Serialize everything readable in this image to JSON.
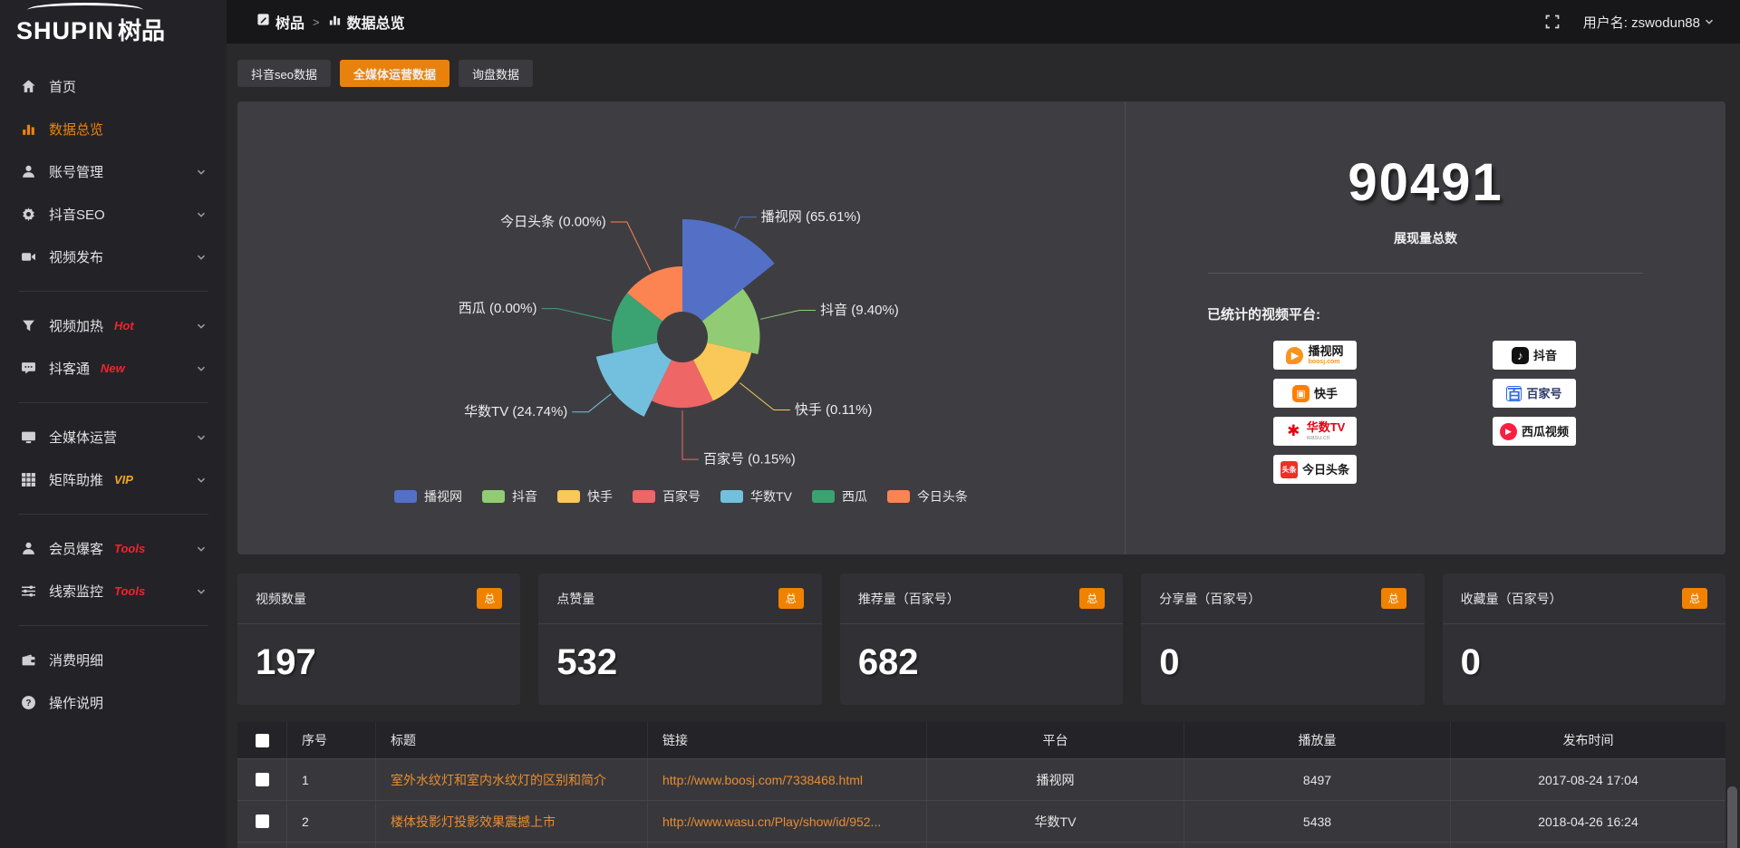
{
  "topbar": {
    "logo_en": "SHUPIN",
    "logo_cn": "树品",
    "breadcrumb": {
      "root": "树品",
      "separator": ">",
      "current": "数据总览"
    },
    "username": "用户名: zswodun88"
  },
  "tabs": [
    {
      "label": "抖音seo数据",
      "active": false
    },
    {
      "label": "全媒体运营数据",
      "active": true
    },
    {
      "label": "询盘数据",
      "active": false
    }
  ],
  "sidebar": {
    "items": [
      {
        "icon": "home-icon",
        "label": "首页"
      },
      {
        "icon": "bar-chart-icon",
        "label": "数据总览",
        "active": true
      },
      {
        "icon": "user-icon",
        "label": "账号管理",
        "chevron": true
      },
      {
        "icon": "gear-icon",
        "label": "抖音SEO",
        "chevron": true
      },
      {
        "icon": "video-icon",
        "label": "视频发布",
        "chevron": true
      },
      {
        "divider": true
      },
      {
        "icon": "funnel-icon",
        "label": "视频加热",
        "badge": "Hot",
        "badge_color": "#f5222d",
        "chevron": true
      },
      {
        "icon": "chat-icon",
        "label": "抖客通",
        "badge": "New",
        "badge_color": "#f5222d",
        "chevron": true
      },
      {
        "divider": true
      },
      {
        "icon": "monitor-icon",
        "label": "全媒体运营",
        "chevron": true
      },
      {
        "icon": "grid-icon",
        "label": "矩阵助推",
        "badge": "VIP",
        "badge_color": "#f0a818",
        "chevron": true
      },
      {
        "divider": true
      },
      {
        "icon": "member-icon",
        "label": "会员爆客",
        "badge": "Tools",
        "badge_color": "#f5222d",
        "chevron": true
      },
      {
        "icon": "sliders-icon",
        "label": "线索监控",
        "badge": "Tools",
        "badge_color": "#f5222d",
        "chevron": true
      },
      {
        "divider": true
      },
      {
        "icon": "wallet-icon",
        "label": "消费明细"
      },
      {
        "icon": "question-icon",
        "label": "操作说明"
      }
    ]
  },
  "chart_data": {
    "type": "pie",
    "subtype": "nightingale-rose",
    "title": "",
    "legend_position": "bottom",
    "label_format": "{name} ({pct}%)",
    "series": [
      {
        "name": "播视网",
        "pct": "65.61",
        "color": "#5470c6"
      },
      {
        "name": "抖音",
        "pct": "9.40",
        "color": "#91cc75"
      },
      {
        "name": "快手",
        "pct": "0.11",
        "color": "#fac858"
      },
      {
        "name": "百家号",
        "pct": "0.15",
        "color": "#ee6666"
      },
      {
        "name": "华数TV",
        "pct": "24.74",
        "color": "#73c0de"
      },
      {
        "name": "西瓜",
        "pct": "0.00",
        "color": "#3ba272"
      },
      {
        "name": "今日头条",
        "pct": "0.00",
        "color": "#fc8452"
      }
    ]
  },
  "summary": {
    "total_value": "90491",
    "total_label": "展现量总数",
    "platforms_title": "已统计的视频平台:",
    "platforms_left": [
      {
        "name": "播视网",
        "sub": "boosj.com",
        "style": "boosj",
        "icon_glyph": "▶"
      },
      {
        "name": "快手",
        "style": "kuaishou",
        "icon_glyph": "▣"
      },
      {
        "name": "华数TV",
        "sub": "wasu.cn",
        "style": "wasu",
        "icon_glyph": "✱"
      },
      {
        "name": "今日头条",
        "style": "toutiao",
        "icon_glyph": "头条"
      }
    ],
    "platforms_right": [
      {
        "name": "抖音",
        "style": "douyin",
        "icon_glyph": "♪"
      },
      {
        "name": "百家号",
        "style": "baijia",
        "icon_glyph": "百"
      },
      {
        "name": "西瓜视频",
        "style": "xigua",
        "icon_glyph": "▶"
      }
    ]
  },
  "stat_cards": [
    {
      "label": "视频数量",
      "badge": "总",
      "value": "197"
    },
    {
      "label": "点赞量",
      "badge": "总",
      "value": "532"
    },
    {
      "label": "推荐量（百家号）",
      "badge": "总",
      "value": "682"
    },
    {
      "label": "分享量（百家号）",
      "badge": "总",
      "value": "0"
    },
    {
      "label": "收藏量（百家号）",
      "badge": "总",
      "value": "0"
    }
  ],
  "table": {
    "headers": [
      "序号",
      "标题",
      "链接",
      "平台",
      "播放量",
      "发布时间"
    ],
    "rows": [
      {
        "index": "1",
        "title": "室外水纹灯和室内水纹灯的区别和简介",
        "link": "http://www.boosj.com/7338468.html",
        "platform": "播视网",
        "plays": "8497",
        "time": "2017-08-24 17:04"
      },
      {
        "index": "2",
        "title": "楼体投影灯投影效果震撼上市",
        "link": "http://www.wasu.cn/Play/show/id/952...",
        "platform": "华数TV",
        "plays": "5438",
        "time": "2018-04-26 16:24"
      }
    ]
  },
  "colors": {
    "accent": "#e8820d",
    "badge_total": "#f08200",
    "link": "#ea8c2e"
  }
}
